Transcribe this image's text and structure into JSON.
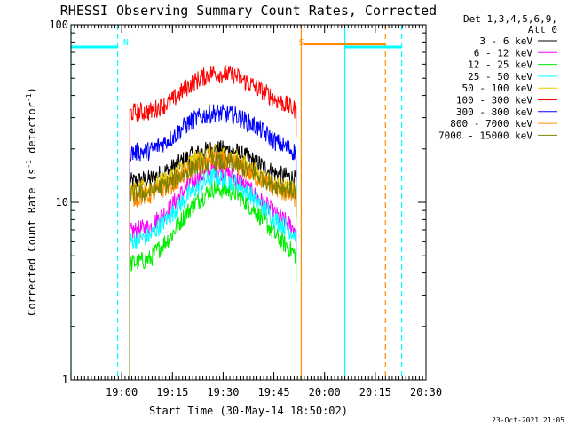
{
  "chart_data": {
    "type": "line",
    "title": "RHESSI Observing Summary Count Rates, Corrected",
    "xlabel": "Start Time (30-May-14 18:50:02)",
    "ylabel": "Corrected Count Rate (s^-1 detector^-1)",
    "ylabel_parts": {
      "main": "Corrected Count Rate (s",
      "exp1": "-1",
      "mid": " detector",
      "exp2": "-1",
      "end": ")"
    },
    "y_scale": "log",
    "ylim": [
      1,
      100
    ],
    "y_ticks": [
      {
        "value": 1,
        "label": "1"
      },
      {
        "value": 10,
        "label": "10"
      },
      {
        "value": 100,
        "label": "100"
      }
    ],
    "x_range_minutes": [
      18.75,
      20.5
    ],
    "x_ticks": [
      {
        "value": 19.0,
        "label": "19:00"
      },
      {
        "value": 19.25,
        "label": "19:15"
      },
      {
        "value": 19.5,
        "label": "19:30"
      },
      {
        "value": 19.75,
        "label": "19:45"
      },
      {
        "value": 20.0,
        "label": "20:00"
      },
      {
        "value": 20.25,
        "label": "20:15"
      },
      {
        "value": 20.5,
        "label": "20:30"
      }
    ],
    "legend_header": [
      "Det 1,3,4,5,6,9,",
      "Att 0"
    ],
    "legend_placement": "right",
    "series": [
      {
        "name": "3 - 6 keV",
        "color": "#000000",
        "profile": [
          13.0,
          13.5,
          15.5,
          18.5,
          20.0,
          19.5,
          17.0,
          14.5,
          13.5
        ]
      },
      {
        "name": "6 - 12 keV",
        "color": "#ff00ff",
        "profile": [
          6.8,
          7.3,
          9.5,
          13.0,
          15.5,
          14.0,
          11.0,
          8.5,
          7.0
        ]
      },
      {
        "name": "12 - 25 keV",
        "color": "#00ee00",
        "profile": [
          4.5,
          4.8,
          6.5,
          9.5,
          12.0,
          11.5,
          9.0,
          6.5,
          5.0
        ]
      },
      {
        "name": "25 - 50 keV",
        "color": "#00ffff",
        "profile": [
          6.0,
          6.5,
          8.5,
          11.5,
          14.0,
          13.0,
          10.5,
          8.0,
          6.5
        ]
      },
      {
        "name": "50 - 100 keV",
        "color": "#e8c800",
        "profile": [
          11.5,
          12.0,
          14.0,
          17.0,
          19.0,
          18.0,
          15.0,
          12.5,
          11.5
        ]
      },
      {
        "name": "100 - 300 keV",
        "color": "#ff0000",
        "profile": [
          32.0,
          32.5,
          37.0,
          47.0,
          54.0,
          52.0,
          45.0,
          38.0,
          33.0
        ]
      },
      {
        "name": "300 - 800 keV",
        "color": "#0000ff",
        "profile": [
          19.0,
          19.5,
          23.0,
          29.0,
          32.0,
          31.0,
          27.0,
          22.0,
          19.0
        ]
      },
      {
        "name": "800 - 7000 keV",
        "color": "#ff8c00",
        "profile": [
          10.5,
          11.0,
          12.5,
          15.5,
          17.5,
          16.5,
          14.0,
          12.0,
          10.5
        ]
      },
      {
        "name": "7000 - 15000 keV",
        "color": "#808000",
        "profile": [
          11.0,
          11.5,
          13.0,
          15.5,
          17.0,
          16.5,
          14.5,
          12.5,
          11.5
        ]
      }
    ],
    "series_time_range": [
      19.04,
      19.86
    ],
    "flags": [
      {
        "label": "N",
        "color": "#00ffff",
        "line_start": 18.75,
        "line_end": 18.98,
        "marker_value": 75
      },
      {
        "label": "N",
        "color": "#00ffff",
        "line_start": 20.1,
        "line_end": 20.38,
        "marker_value": 75
      },
      {
        "label": "S",
        "color": "#ff8c00",
        "line_start": 19.9,
        "line_end": 20.3,
        "marker_value": 78
      }
    ],
    "flag_text_positions": [
      {
        "label": "N",
        "x": 18.99,
        "color": "#00ffff"
      },
      {
        "label": "S",
        "x": 19.855,
        "color": "#ff8c00"
      }
    ],
    "vertical_lines": [
      {
        "x": 18.75,
        "color": "#00ffff",
        "style": "solid"
      },
      {
        "x": 18.98,
        "color": "#00ffff",
        "style": "dashed"
      },
      {
        "x": 19.885,
        "color": "#ff8c00",
        "style": "solid"
      },
      {
        "x": 20.1,
        "color": "#00ffff",
        "style": "solid"
      },
      {
        "x": 20.3,
        "color": "#ff8c00",
        "style": "dashed"
      },
      {
        "x": 20.38,
        "color": "#00ffff",
        "style": "dashed"
      }
    ],
    "timestamp": "23-Oct-2021 21:05"
  }
}
